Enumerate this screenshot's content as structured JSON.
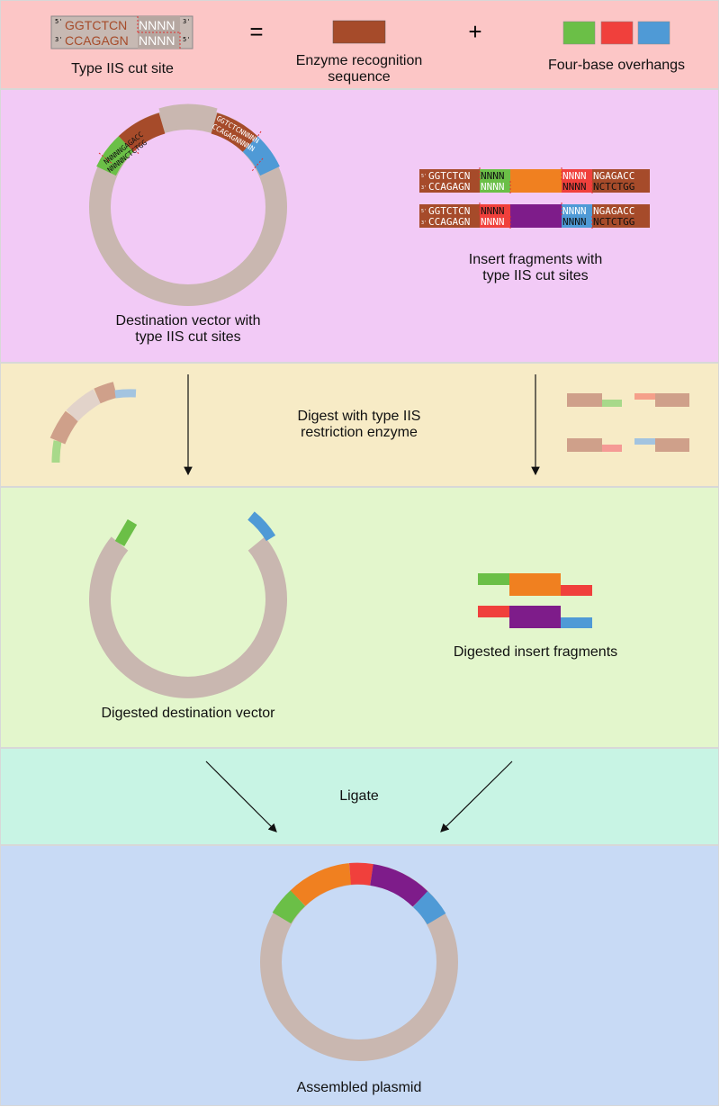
{
  "legend": {
    "cut_site_label": "Type IIS cut site",
    "equals_sign": "=",
    "recognition_label": "Enzyme recognition\nsequence",
    "plus_sign": "+",
    "overhangs_label": "Four-base overhangs",
    "top_strand": "GGTCTCN",
    "bottom_strand": "CCAGAGN",
    "overhang_bases": "NNNN",
    "prime5": "5'",
    "prime3": "3'"
  },
  "vector": {
    "label": "Destination vector with\ntype IIS cut sites",
    "site_left_top": "NNNNNGAGACC",
    "site_left_bottom": "NNNNNCTCTGG",
    "site_right_top": "GGTCTCNNNNN",
    "site_right_bottom": "CCAGAGNNNNN"
  },
  "inserts": {
    "label": "Insert fragments with\ntype IIS cut sites",
    "fragments": [
      {
        "left_top": "GGTCTCN",
        "left_bottom": "CCAGAGN",
        "left_overhang": "NNNN",
        "right_overhang": "NNNN",
        "right_top": "NGAGACC",
        "right_bottom": "NCTCTGG"
      },
      {
        "left_top": "GGTCTCN",
        "left_bottom": "CCAGAGN",
        "left_overhang": "NNNN",
        "right_overhang": "NNNN",
        "right_top": "NGAGACC",
        "right_bottom": "NCTCTGG"
      }
    ]
  },
  "digest": {
    "label": "Digest with type IIS\nrestriction enzyme"
  },
  "digested": {
    "vector_label": "Digested destination vector",
    "inserts_label": "Digested insert fragments"
  },
  "ligate": {
    "label": "Ligate"
  },
  "plasmid": {
    "label": "Assembled plasmid"
  },
  "colors": {
    "recognition": "#a64b2a",
    "green": "#6bbf47",
    "red": "#f0403c",
    "blue": "#4f9ad6",
    "backbone": "#c9b7b0",
    "orange": "#f08020",
    "purple": "#7e1c8a"
  }
}
